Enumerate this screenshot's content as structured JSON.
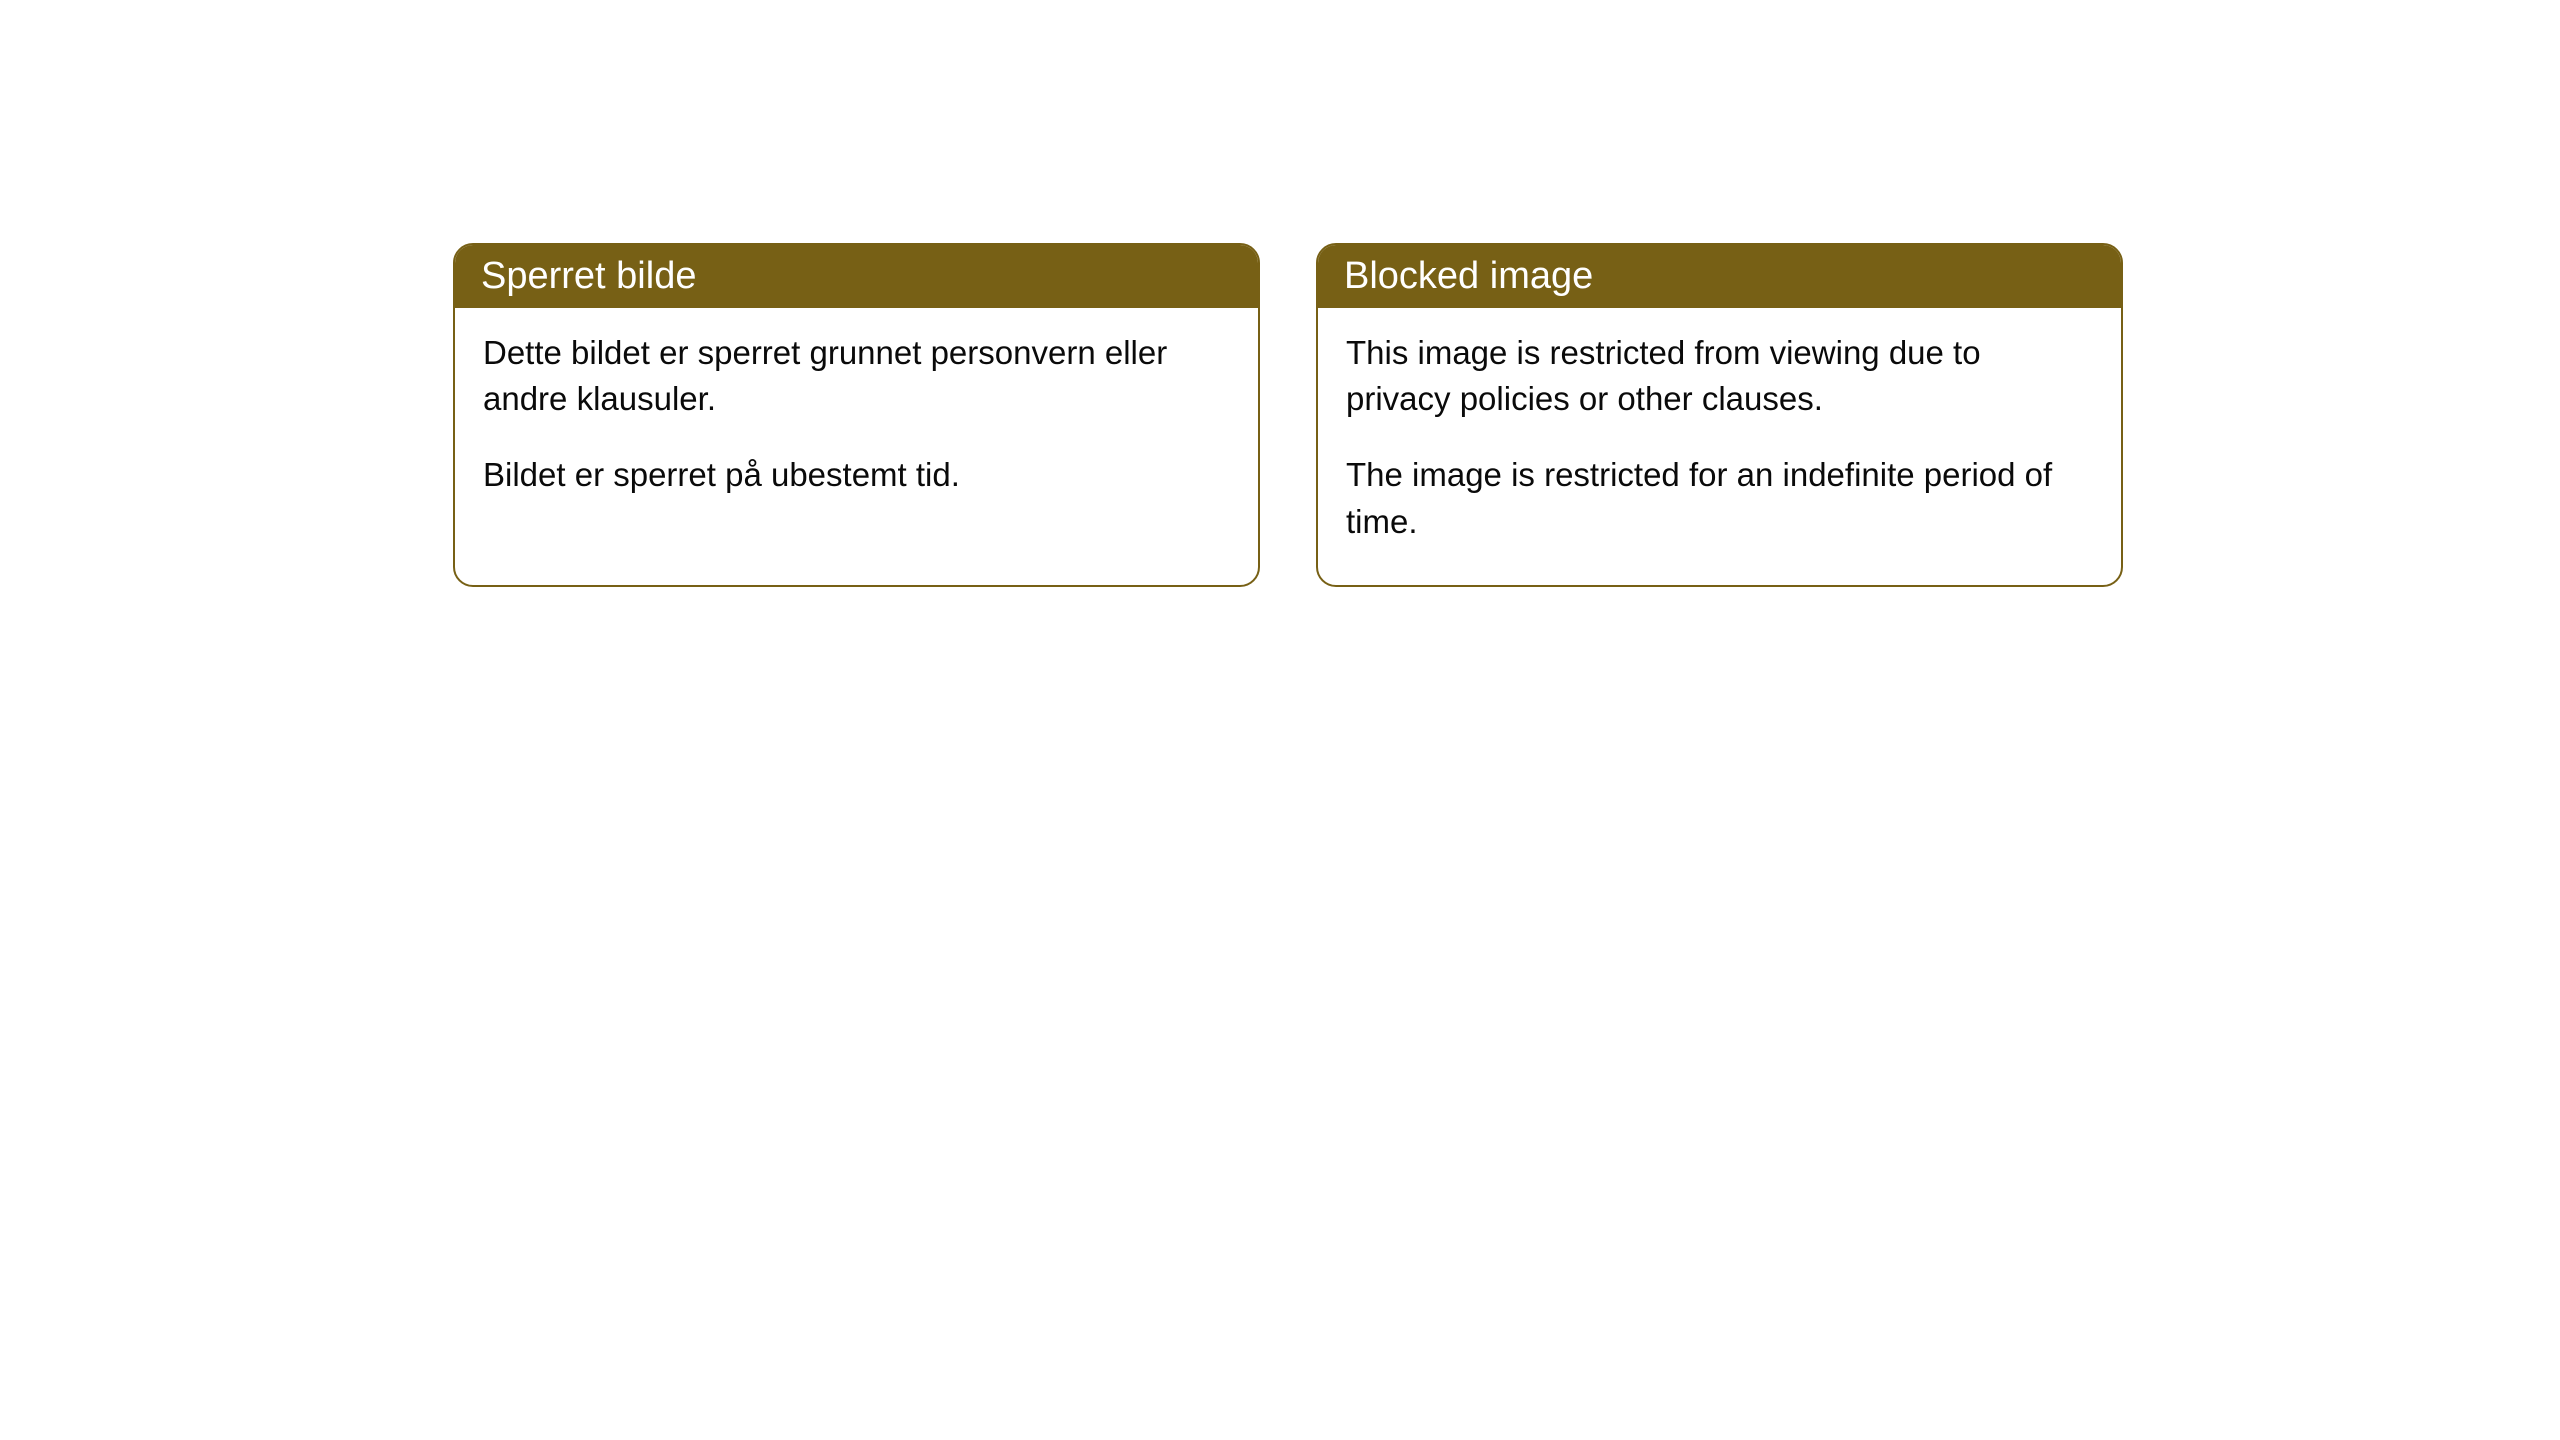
{
  "cards": [
    {
      "title": "Sperret bilde",
      "paragraph1": "Dette bildet er sperret grunnet personvern eller andre klausuler.",
      "paragraph2": "Bildet er sperret på ubestemt tid."
    },
    {
      "title": "Blocked image",
      "paragraph1": "This image is restricted from viewing due to privacy policies or other clauses.",
      "paragraph2": "The image is restricted for an indefinite period of time."
    }
  ],
  "style": {
    "header_bg_color": "#776015",
    "header_text_color": "#ffffff",
    "border_color": "#776015",
    "body_bg_color": "#ffffff",
    "body_text_color": "#0a0a0a",
    "border_radius": 20,
    "header_fontsize": 38,
    "body_fontsize": 33
  }
}
